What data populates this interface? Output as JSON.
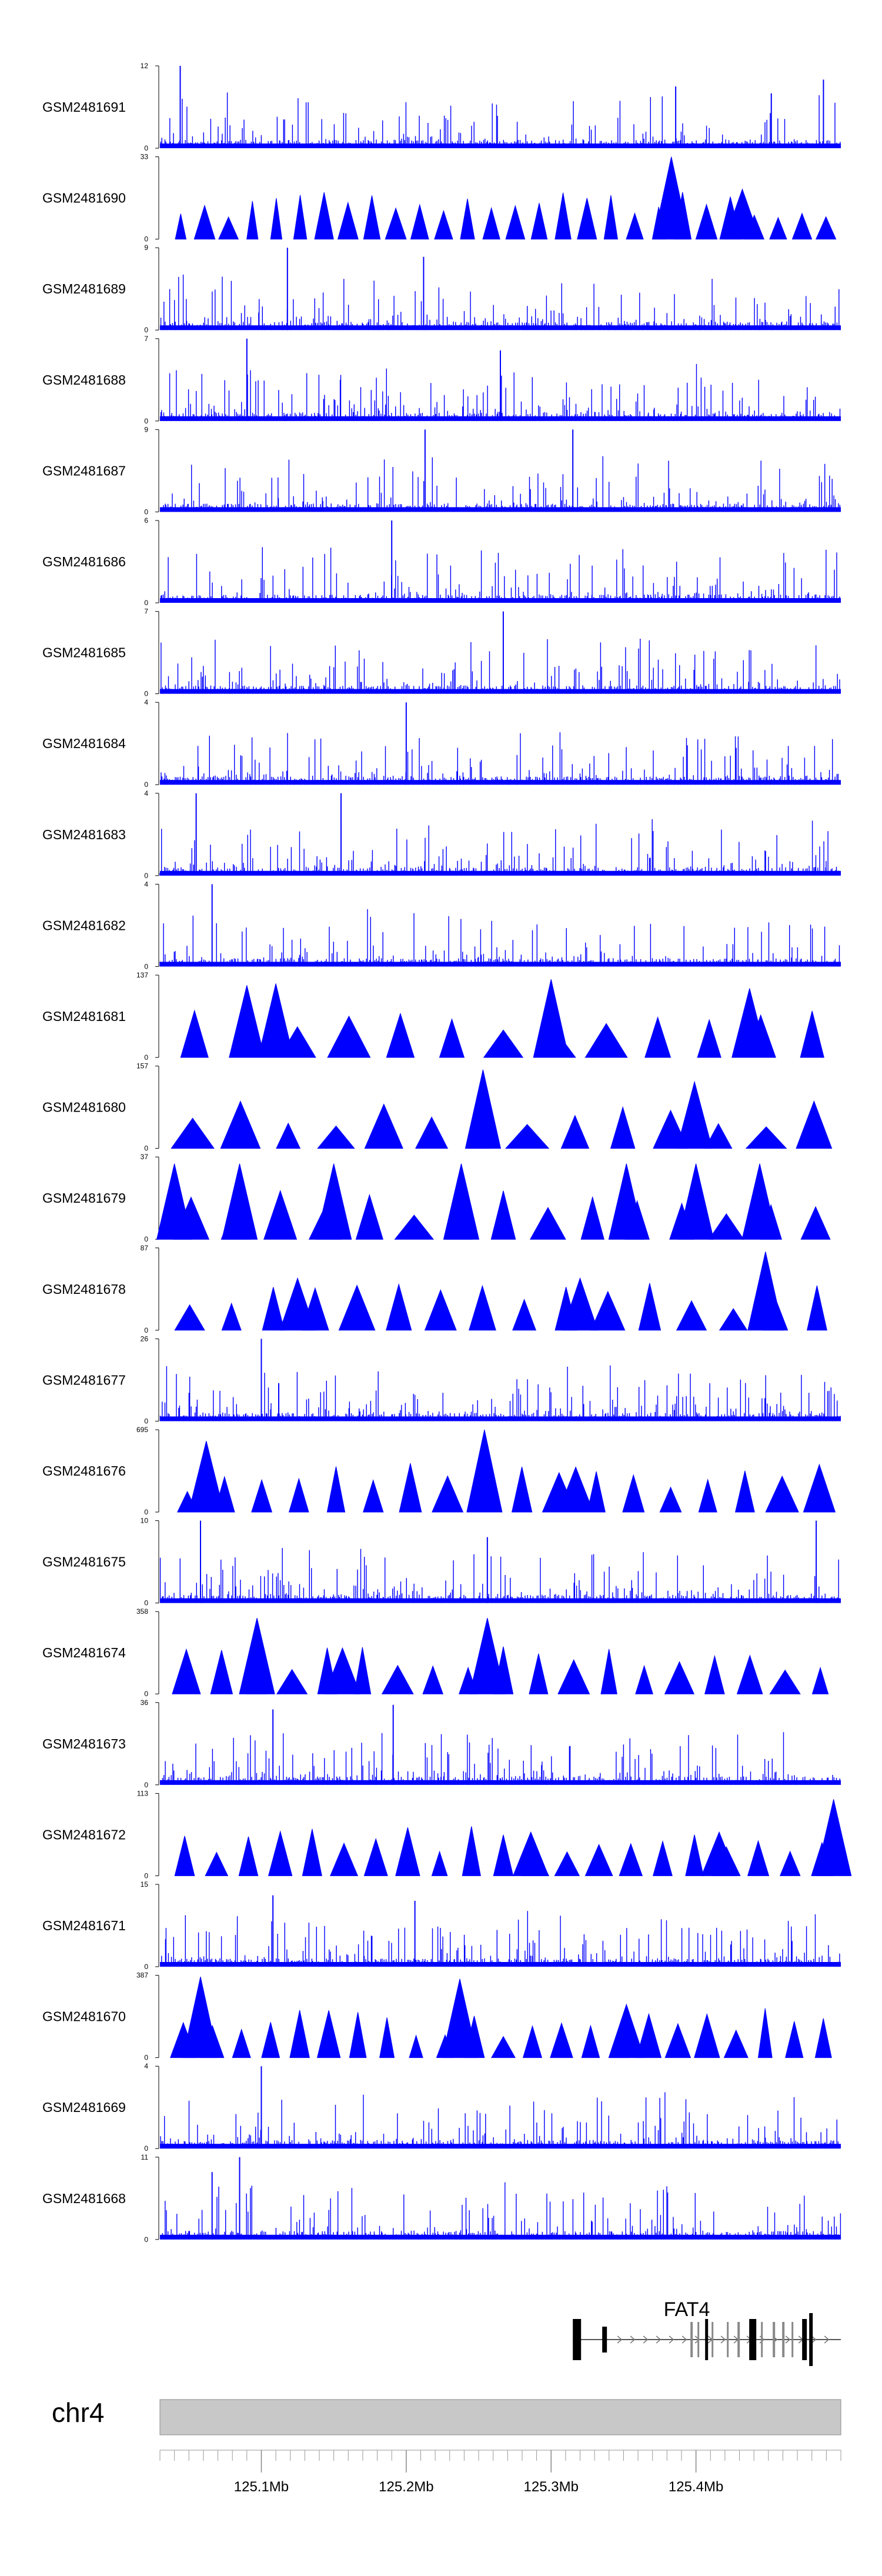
{
  "chart_data": {
    "type": "genome_browser_tracks",
    "chromosome": "chr4",
    "region_mb": [
      125.03,
      125.5
    ],
    "x_ticks_mb": [
      125.1,
      125.2,
      125.3,
      125.4
    ],
    "x_tick_labels": [
      "125.1Mb",
      "125.2Mb",
      "125.3Mb",
      "125.4Mb"
    ],
    "gene": {
      "name": "FAT4",
      "start_mb": 125.315,
      "end_mb": 125.5,
      "strand": "+"
    },
    "track_color": "#0000ff",
    "tracks": [
      {
        "name": "GSM2481691",
        "ymax": 12,
        "ymin_label": "0",
        "style": "bars",
        "peaks": [
          {
            "x_mb": 125.044,
            "value": 12
          },
          {
            "x_mb": 125.386,
            "value": 9
          },
          {
            "x_mb": 125.452,
            "value": 8
          },
          {
            "x_mb": 125.488,
            "value": 10
          }
        ]
      },
      {
        "name": "GSM2481690",
        "ymax": 33,
        "ymin_label": "0",
        "style": "triangles",
        "peaks": [
          {
            "x_mb": 125.383,
            "value": 33
          },
          {
            "x_mb": 125.432,
            "value": 20
          }
        ]
      },
      {
        "name": "GSM2481689",
        "ymax": 9,
        "ymin_label": "0",
        "style": "bars",
        "peaks": [
          {
            "x_mb": 125.118,
            "value": 9
          },
          {
            "x_mb": 125.212,
            "value": 8
          }
        ]
      },
      {
        "name": "GSM2481688",
        "ymax": 7,
        "ymin_label": "0",
        "style": "bars",
        "peaks": [
          {
            "x_mb": 125.09,
            "value": 7
          },
          {
            "x_mb": 125.265,
            "value": 6
          }
        ]
      },
      {
        "name": "GSM2481687",
        "ymax": 9,
        "ymin_label": "0",
        "style": "bars",
        "peaks": [
          {
            "x_mb": 125.213,
            "value": 9
          },
          {
            "x_mb": 125.315,
            "value": 9
          }
        ]
      },
      {
        "name": "GSM2481686",
        "ymax": 6,
        "ymin_label": "0",
        "style": "bars",
        "peaks": [
          {
            "x_mb": 125.19,
            "value": 6
          }
        ]
      },
      {
        "name": "GSM2481685",
        "ymax": 7,
        "ymin_label": "0",
        "style": "bars",
        "peaks": [
          {
            "x_mb": 125.267,
            "value": 7
          }
        ]
      },
      {
        "name": "GSM2481684",
        "ymax": 4,
        "ymin_label": "0",
        "style": "bars",
        "peaks": [
          {
            "x_mb": 125.2,
            "value": 4
          }
        ]
      },
      {
        "name": "GSM2481683",
        "ymax": 4,
        "ymin_label": "0",
        "style": "bars",
        "peaks": [
          {
            "x_mb": 125.055,
            "value": 4
          },
          {
            "x_mb": 125.155,
            "value": 4
          }
        ]
      },
      {
        "name": "GSM2481682",
        "ymax": 4,
        "ymin_label": "0",
        "style": "bars",
        "peaks": [
          {
            "x_mb": 125.066,
            "value": 4
          }
        ]
      },
      {
        "name": "GSM2481681",
        "ymax": 137,
        "ymin_label": "0",
        "style": "triangles",
        "peaks": [
          {
            "x_mb": 125.09,
            "value": 120
          },
          {
            "x_mb": 125.11,
            "value": 123
          },
          {
            "x_mb": 125.3,
            "value": 130
          },
          {
            "x_mb": 125.437,
            "value": 115
          }
        ]
      },
      {
        "name": "GSM2481680",
        "ymax": 157,
        "ymin_label": "0",
        "style": "triangles",
        "peaks": [
          {
            "x_mb": 125.253,
            "value": 150
          },
          {
            "x_mb": 125.399,
            "value": 127
          }
        ]
      },
      {
        "name": "GSM2481679",
        "ymax": 37,
        "ymin_label": "0",
        "style": "triangles",
        "peaks": [
          {
            "x_mb": 125.04,
            "value": 34
          },
          {
            "x_mb": 125.085,
            "value": 34
          },
          {
            "x_mb": 125.15,
            "value": 34
          },
          {
            "x_mb": 125.238,
            "value": 34
          },
          {
            "x_mb": 125.352,
            "value": 34
          },
          {
            "x_mb": 125.4,
            "value": 34
          },
          {
            "x_mb": 125.444,
            "value": 34
          }
        ]
      },
      {
        "name": "GSM2481678",
        "ymax": 87,
        "ymin_label": "0",
        "style": "triangles",
        "peaks": [
          {
            "x_mb": 125.125,
            "value": 55
          },
          {
            "x_mb": 125.32,
            "value": 55
          },
          {
            "x_mb": 125.448,
            "value": 83
          }
        ]
      },
      {
        "name": "GSM2481677",
        "ymax": 26,
        "ymin_label": "0",
        "style": "bars",
        "peaks": [
          {
            "x_mb": 125.1,
            "value": 26
          },
          {
            "x_mb": 125.112,
            "value": 12
          }
        ]
      },
      {
        "name": "GSM2481676",
        "ymax": 695,
        "ymin_label": "0",
        "style": "triangles",
        "peaks": [
          {
            "x_mb": 125.062,
            "value": 600
          },
          {
            "x_mb": 125.254,
            "value": 695
          },
          {
            "x_mb": 125.317,
            "value": 380
          }
        ]
      },
      {
        "name": "GSM2481675",
        "ymax": 10,
        "ymin_label": "0",
        "style": "bars",
        "peaks": [
          {
            "x_mb": 125.058,
            "value": 10
          },
          {
            "x_mb": 125.256,
            "value": 8
          },
          {
            "x_mb": 125.483,
            "value": 10
          }
        ]
      },
      {
        "name": "GSM2481674",
        "ymax": 358,
        "ymin_label": "0",
        "style": "triangles",
        "peaks": [
          {
            "x_mb": 125.097,
            "value": 330
          },
          {
            "x_mb": 125.156,
            "value": 200
          },
          {
            "x_mb": 125.256,
            "value": 330
          }
        ]
      },
      {
        "name": "GSM2481673",
        "ymax": 36,
        "ymin_label": "0",
        "style": "bars",
        "peaks": [
          {
            "x_mb": 125.108,
            "value": 33
          },
          {
            "x_mb": 125.191,
            "value": 35
          }
        ]
      },
      {
        "name": "GSM2481672",
        "ymax": 113,
        "ymin_label": "0",
        "style": "triangles",
        "peaks": [
          {
            "x_mb": 125.286,
            "value": 60
          },
          {
            "x_mb": 125.416,
            "value": 60
          },
          {
            "x_mb": 125.495,
            "value": 105
          }
        ]
      },
      {
        "name": "GSM2481671",
        "ymax": 15,
        "ymin_label": "0",
        "style": "bars",
        "peaks": [
          {
            "x_mb": 125.108,
            "value": 13
          },
          {
            "x_mb": 125.206,
            "value": 12
          }
        ]
      },
      {
        "name": "GSM2481670",
        "ymax": 387,
        "ymin_label": "0",
        "style": "triangles",
        "peaks": [
          {
            "x_mb": 125.058,
            "value": 380
          },
          {
            "x_mb": 125.237,
            "value": 370
          },
          {
            "x_mb": 125.352,
            "value": 250
          }
        ]
      },
      {
        "name": "GSM2481669",
        "ymax": 4,
        "ymin_label": "0",
        "style": "bars",
        "peaks": [
          {
            "x_mb": 125.1,
            "value": 4
          }
        ]
      },
      {
        "name": "GSM2481668",
        "ymax": 11,
        "ymin_label": "0",
        "style": "bars",
        "peaks": [
          {
            "x_mb": 125.066,
            "value": 9
          },
          {
            "x_mb": 125.085,
            "value": 11
          }
        ]
      }
    ]
  }
}
